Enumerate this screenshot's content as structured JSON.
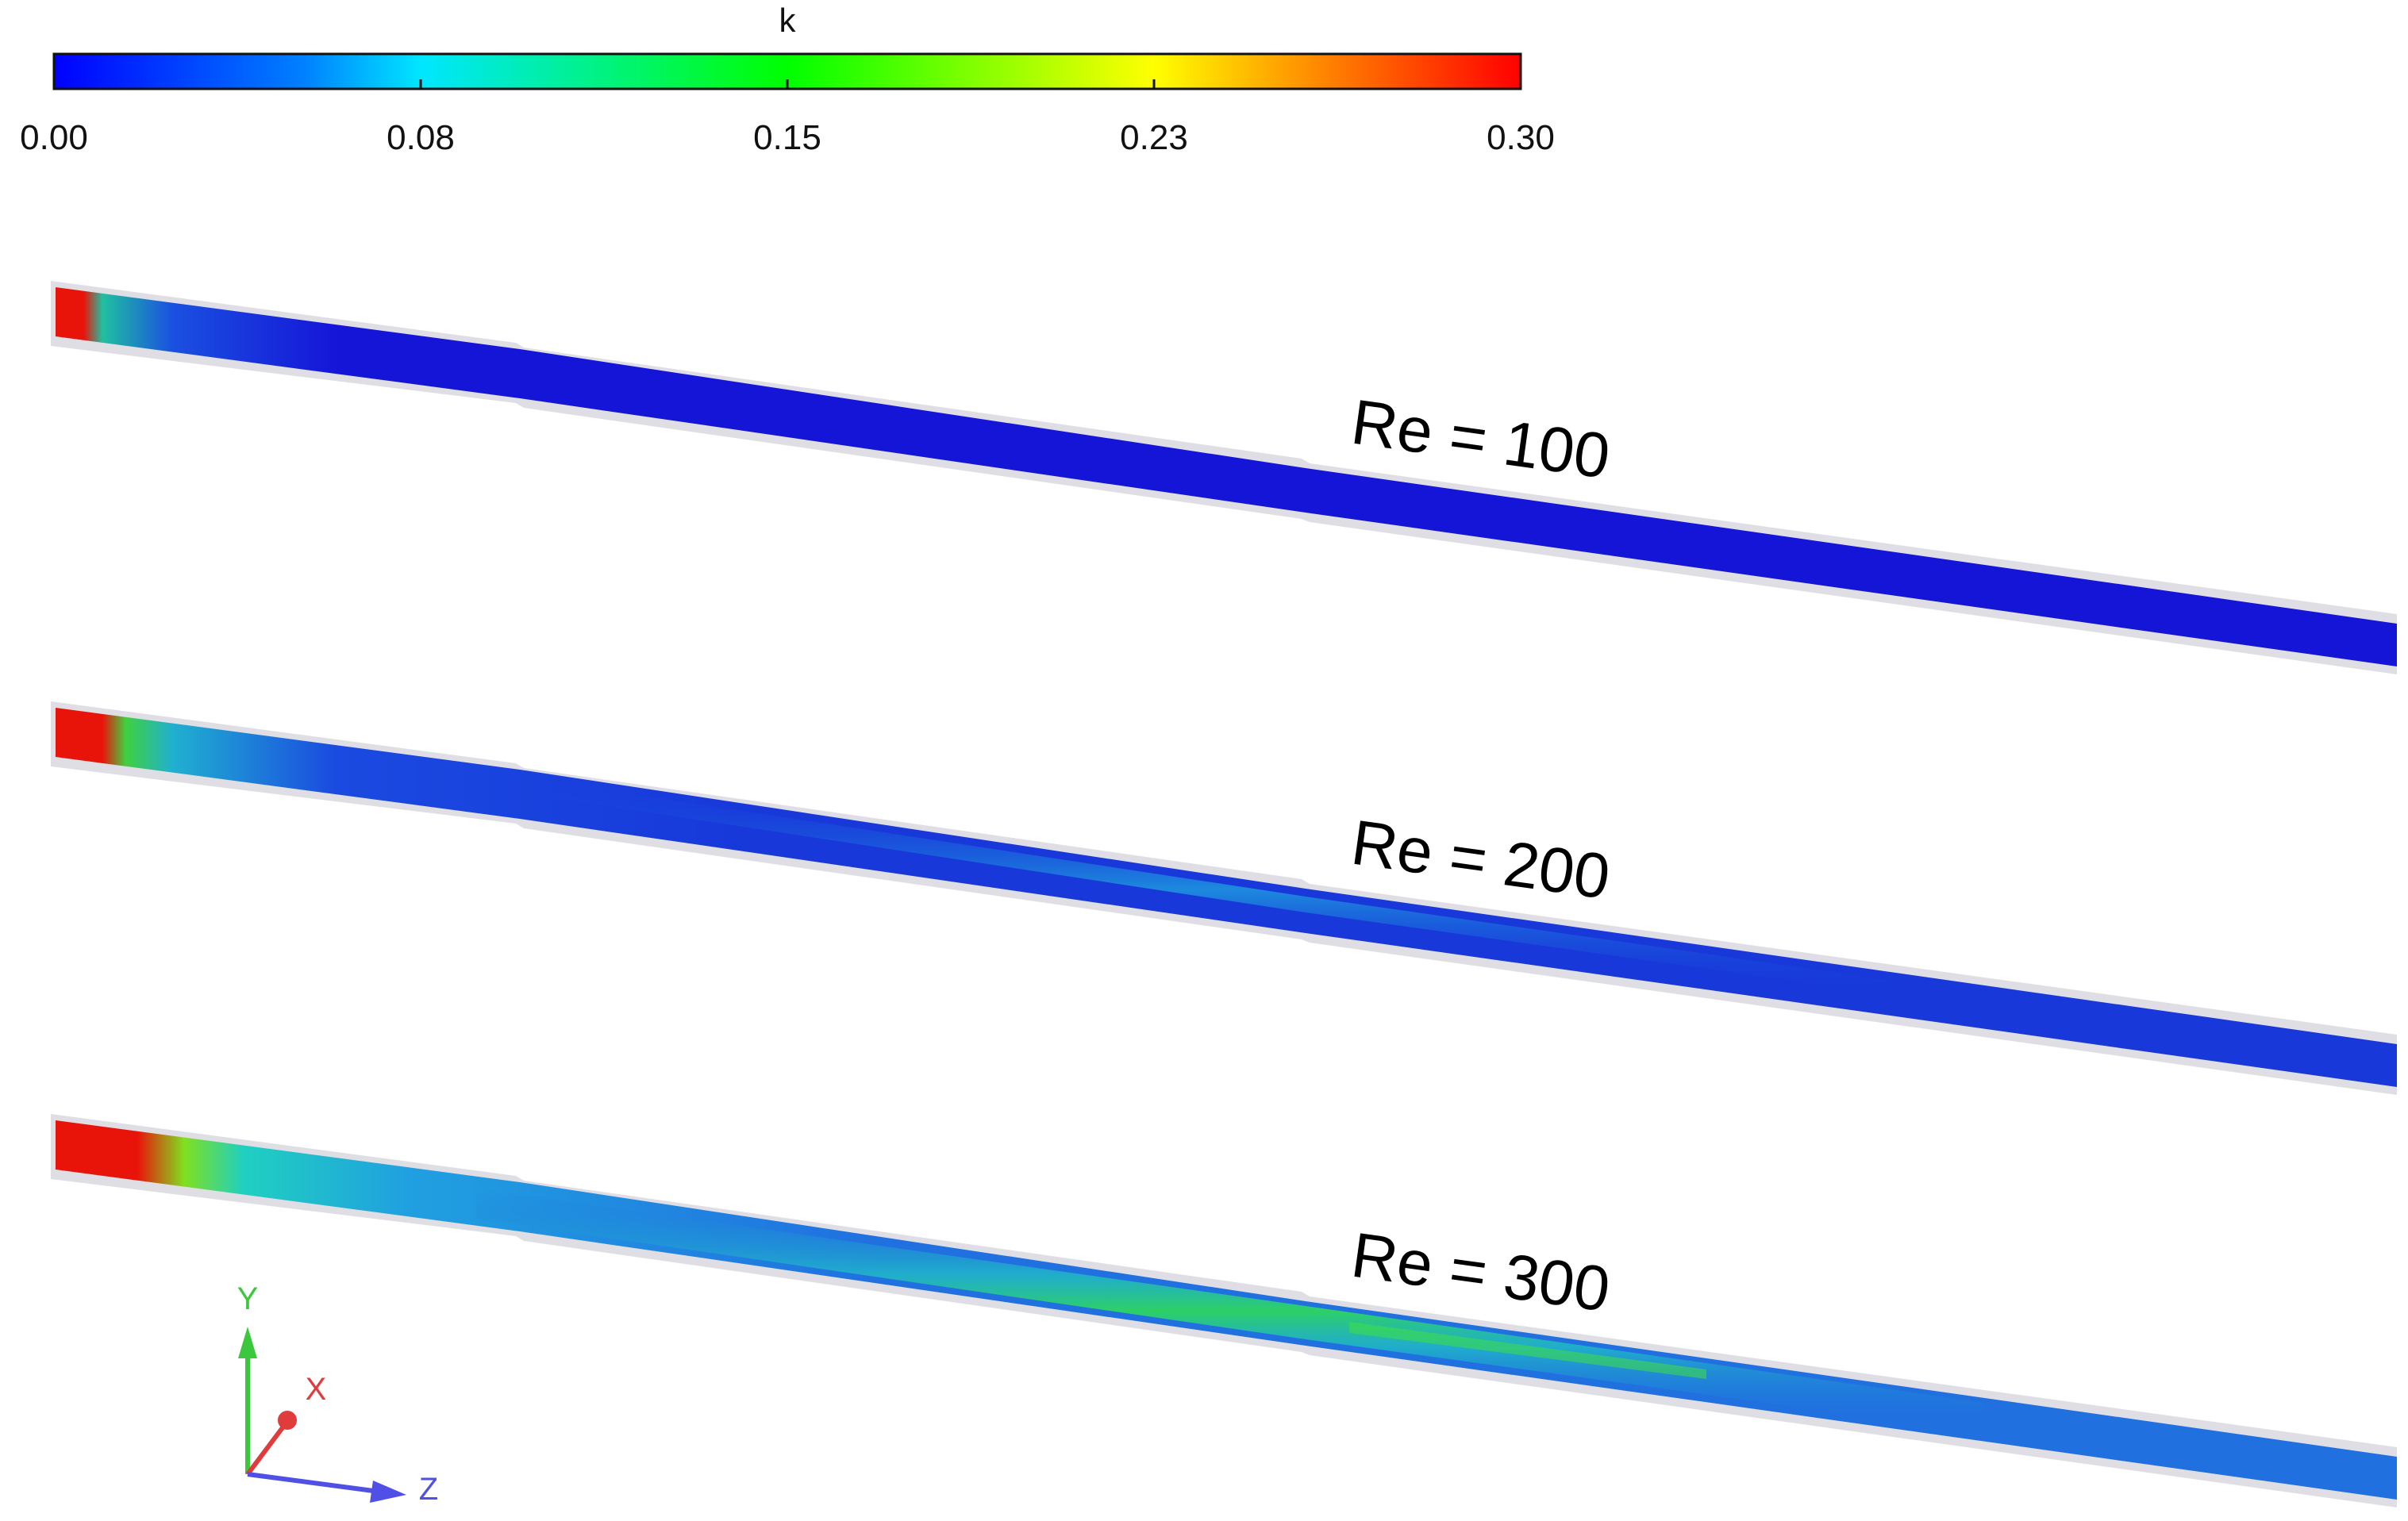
{
  "legend": {
    "title": "k",
    "ticks": [
      "0.00",
      "0.08",
      "0.15",
      "0.23",
      "0.30"
    ],
    "colormap": [
      "#0000ff",
      "#0080ff",
      "#00ffff",
      "#00ff00",
      "#ffff00",
      "#ff8000",
      "#ff0000"
    ]
  },
  "cases": [
    {
      "label": "Re = 100"
    },
    {
      "label": "Re = 200"
    },
    {
      "label": "Re = 300"
    }
  ],
  "triad": {
    "y": "Y",
    "x": "X",
    "z": "Z"
  },
  "colors": {
    "field_low": "#1515d8",
    "pipe_wall": "#dedee4",
    "inlet_high": "#e8140a",
    "axis_y": "#3cc83c",
    "axis_x": "#e03c3c",
    "axis_z": "#5050e6"
  }
}
